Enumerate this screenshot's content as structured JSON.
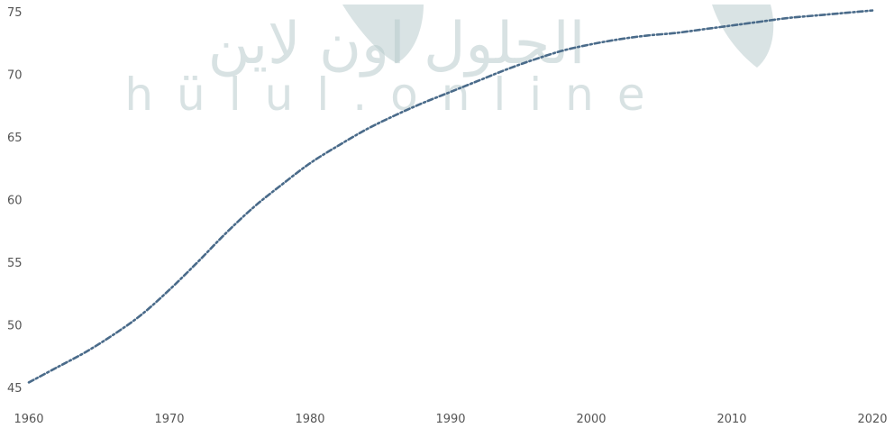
{
  "watermark": {
    "arabic": "الحلول اون لاين",
    "latin": "hülul.online"
  },
  "chart_data": {
    "type": "line",
    "title": "",
    "xlabel": "",
    "ylabel": "",
    "xlim": [
      1960,
      2020
    ],
    "ylim": [
      45,
      75
    ],
    "x_ticks": [
      1960,
      1970,
      1980,
      1990,
      2000,
      2010,
      2020
    ],
    "y_ticks": [
      45,
      50,
      55,
      60,
      65,
      70,
      75
    ],
    "grid": false,
    "legend": "none",
    "line_color": "#4a6b8a",
    "line_style": "dash-dot",
    "series": [
      {
        "x": [
          1960,
          1962,
          1964,
          1966,
          1968,
          1970,
          1972,
          1974,
          1976,
          1978,
          1980,
          1982,
          1984,
          1986,
          1988,
          1990,
          1992,
          1994,
          1996,
          1998,
          2000,
          2002,
          2004,
          2006,
          2008,
          2010,
          2012,
          2014,
          2016,
          2018,
          2020
        ],
        "values": [
          45.4,
          46.6,
          47.8,
          49.2,
          50.8,
          52.8,
          55.0,
          57.3,
          59.4,
          61.2,
          62.9,
          64.3,
          65.6,
          66.7,
          67.7,
          68.6,
          69.5,
          70.4,
          71.2,
          71.9,
          72.4,
          72.8,
          73.1,
          73.3,
          73.6,
          73.9,
          74.2,
          74.5,
          74.7,
          74.9,
          75.1
        ]
      }
    ]
  }
}
